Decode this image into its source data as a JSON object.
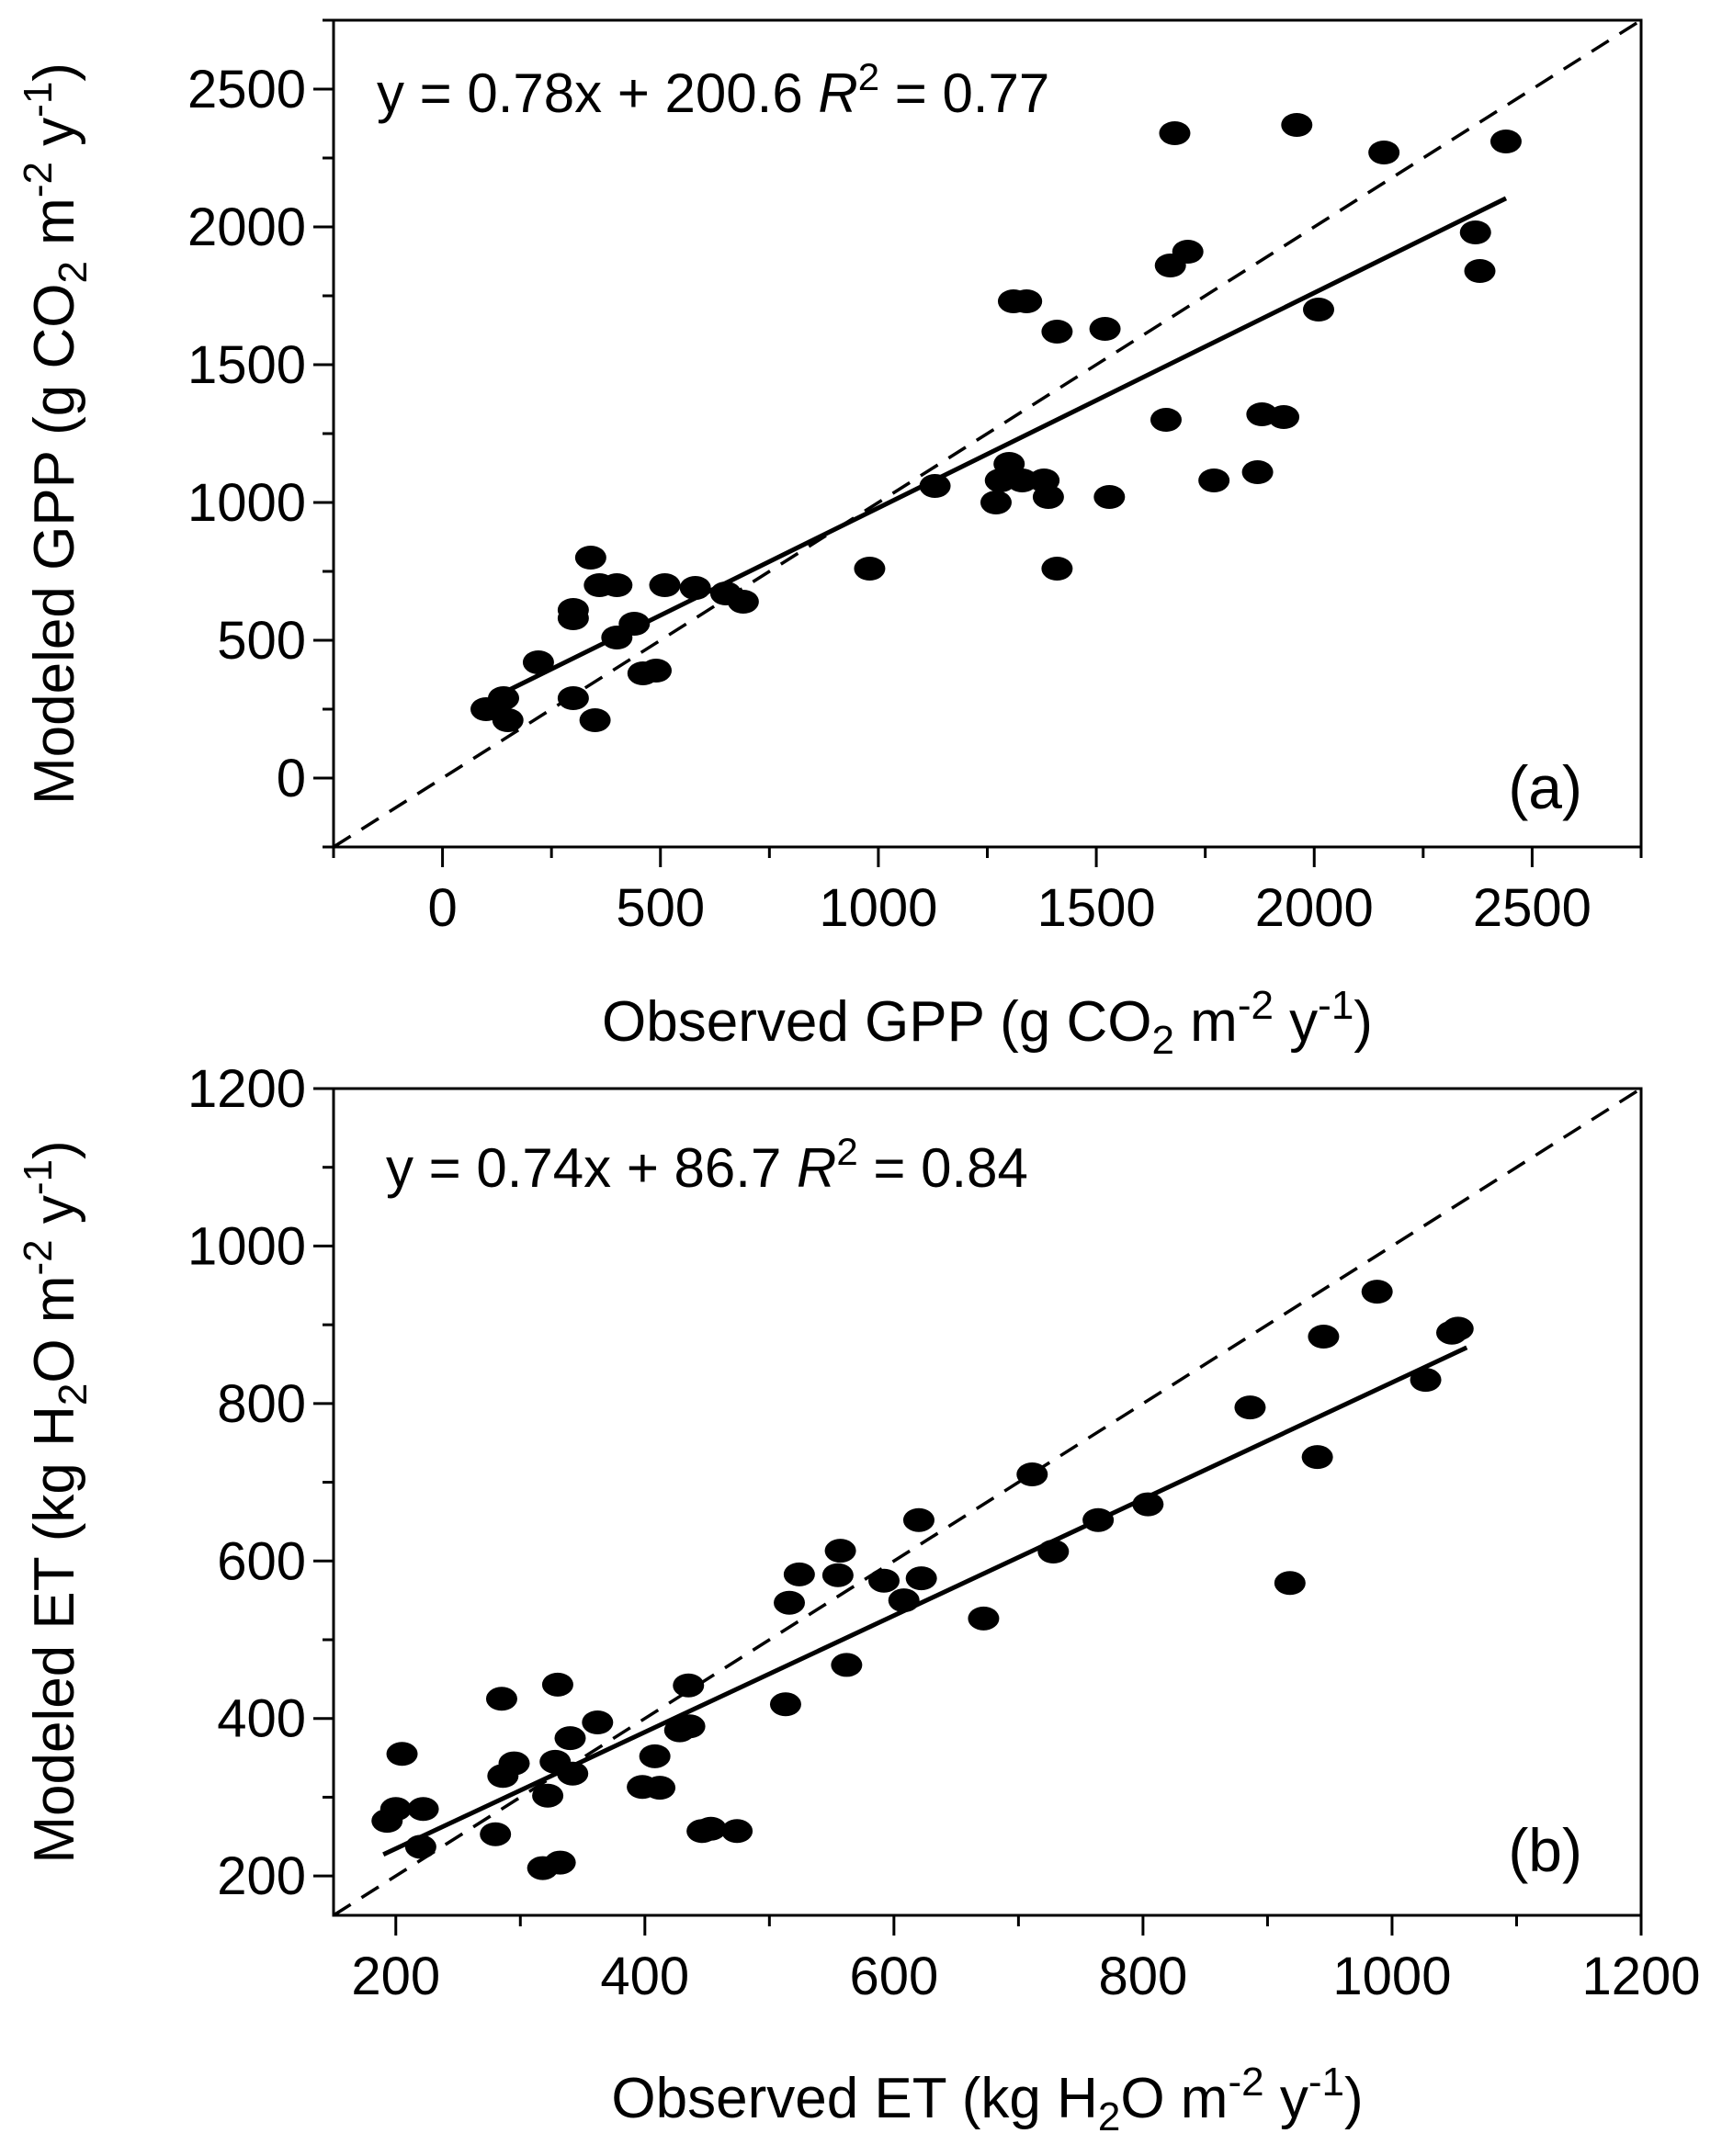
{
  "chart_data": [
    {
      "id": "a",
      "type": "scatter",
      "panel_label": "(a)",
      "xlabel": {
        "main": "Observed GPP (g CO",
        "sub1": "2",
        "mid": " m",
        "sup1": "-2",
        "mid2": " y",
        "sup2": "-1",
        "end": ")"
      },
      "ylabel": {
        "main": "Modeled GPP (g CO",
        "sub1": "2",
        "mid": " m",
        "sup1": "-2",
        "mid2": " y",
        "sup2": "-1",
        "end": ")"
      },
      "annotation": {
        "equation": "y = 0.78x + 200.6",
        "r_symbol": "R",
        "r_sup": "2",
        "r_value": " = 0.77"
      },
      "xlim": [
        -250,
        2750
      ],
      "ylim": [
        -250,
        2750
      ],
      "xticks": [
        0,
        500,
        1000,
        1500,
        2000,
        2500
      ],
      "yticks": [
        0,
        500,
        1000,
        1500,
        2000,
        2500
      ],
      "fit": {
        "slope": 0.78,
        "intercept": 200.6,
        "x_range": [
          100,
          2440
        ]
      },
      "one_to_one": true,
      "points": [
        [
          100,
          250
        ],
        [
          140,
          290
        ],
        [
          150,
          210
        ],
        [
          220,
          420
        ],
        [
          300,
          580
        ],
        [
          300,
          610
        ],
        [
          300,
          290
        ],
        [
          340,
          800
        ],
        [
          350,
          210
        ],
        [
          360,
          700
        ],
        [
          400,
          700
        ],
        [
          400,
          510
        ],
        [
          440,
          560
        ],
        [
          460,
          380
        ],
        [
          490,
          390
        ],
        [
          510,
          700
        ],
        [
          580,
          690
        ],
        [
          650,
          670
        ],
        [
          690,
          640
        ],
        [
          980,
          760
        ],
        [
          1130,
          1060
        ],
        [
          1270,
          1000
        ],
        [
          1280,
          1080
        ],
        [
          1300,
          1140
        ],
        [
          1310,
          1730
        ],
        [
          1330,
          1080
        ],
        [
          1340,
          1730
        ],
        [
          1380,
          1080
        ],
        [
          1390,
          1020
        ],
        [
          1410,
          1620
        ],
        [
          1410,
          760
        ],
        [
          1520,
          1630
        ],
        [
          1530,
          1020
        ],
        [
          1660,
          1300
        ],
        [
          1670,
          1860
        ],
        [
          1680,
          2340
        ],
        [
          1710,
          1910
        ],
        [
          1770,
          1080
        ],
        [
          1870,
          1110
        ],
        [
          1880,
          1320
        ],
        [
          1930,
          1310
        ],
        [
          1960,
          2370
        ],
        [
          2010,
          1700
        ],
        [
          2160,
          2270
        ],
        [
          2370,
          1980
        ],
        [
          2380,
          1840
        ],
        [
          2440,
          2310
        ]
      ]
    },
    {
      "id": "b",
      "type": "scatter",
      "panel_label": "(b)",
      "xlabel": {
        "main": "Observed ET (kg H",
        "sub1": "2",
        "mid": "O m",
        "sup1": "-2",
        "mid2": " y",
        "sup2": "-1",
        "end": ")"
      },
      "ylabel": {
        "main": "Modeled ET (kg H",
        "sub1": "2",
        "mid": "O m",
        "sup1": "-2",
        "mid2": " y",
        "sup2": "-1",
        "end": ")"
      },
      "annotation": {
        "equation": "y = 0.74x + 86.7",
        "r_symbol": "R",
        "r_sup": "2",
        "r_value": " = 0.84"
      },
      "xlim": [
        150,
        1200
      ],
      "ylim": [
        150,
        1200
      ],
      "xticks": [
        200,
        400,
        600,
        800,
        1000,
        1200
      ],
      "yticks": [
        200,
        400,
        600,
        800,
        1000,
        1200
      ],
      "fit": {
        "slope": 0.74,
        "intercept": 86.7,
        "x_range": [
          190,
          1060
        ]
      },
      "one_to_one": true,
      "points": [
        [
          193,
          270
        ],
        [
          200,
          285
        ],
        [
          205,
          355
        ],
        [
          220,
          237
        ],
        [
          222,
          285
        ],
        [
          280,
          253
        ],
        [
          285,
          425
        ],
        [
          286,
          327
        ],
        [
          295,
          343
        ],
        [
          318,
          210
        ],
        [
          322,
          302
        ],
        [
          328,
          345
        ],
        [
          330,
          443
        ],
        [
          332,
          217
        ],
        [
          340,
          375
        ],
        [
          342,
          330
        ],
        [
          362,
          395
        ],
        [
          398,
          313
        ],
        [
          408,
          352
        ],
        [
          412,
          312
        ],
        [
          428,
          385
        ],
        [
          435,
          442
        ],
        [
          436,
          390
        ],
        [
          446,
          257
        ],
        [
          453,
          260
        ],
        [
          474,
          257
        ],
        [
          513,
          418
        ],
        [
          516,
          547
        ],
        [
          524,
          583
        ],
        [
          555,
          582
        ],
        [
          557,
          613
        ],
        [
          562,
          468
        ],
        [
          592,
          575
        ],
        [
          608,
          550
        ],
        [
          620,
          652
        ],
        [
          622,
          578
        ],
        [
          672,
          527
        ],
        [
          711,
          710
        ],
        [
          728,
          612
        ],
        [
          764,
          652
        ],
        [
          804,
          672
        ],
        [
          886,
          795
        ],
        [
          918,
          572
        ],
        [
          940,
          732
        ],
        [
          945,
          885
        ],
        [
          988,
          942
        ],
        [
          1027,
          830
        ],
        [
          1048,
          890
        ],
        [
          1053,
          895
        ]
      ]
    }
  ]
}
